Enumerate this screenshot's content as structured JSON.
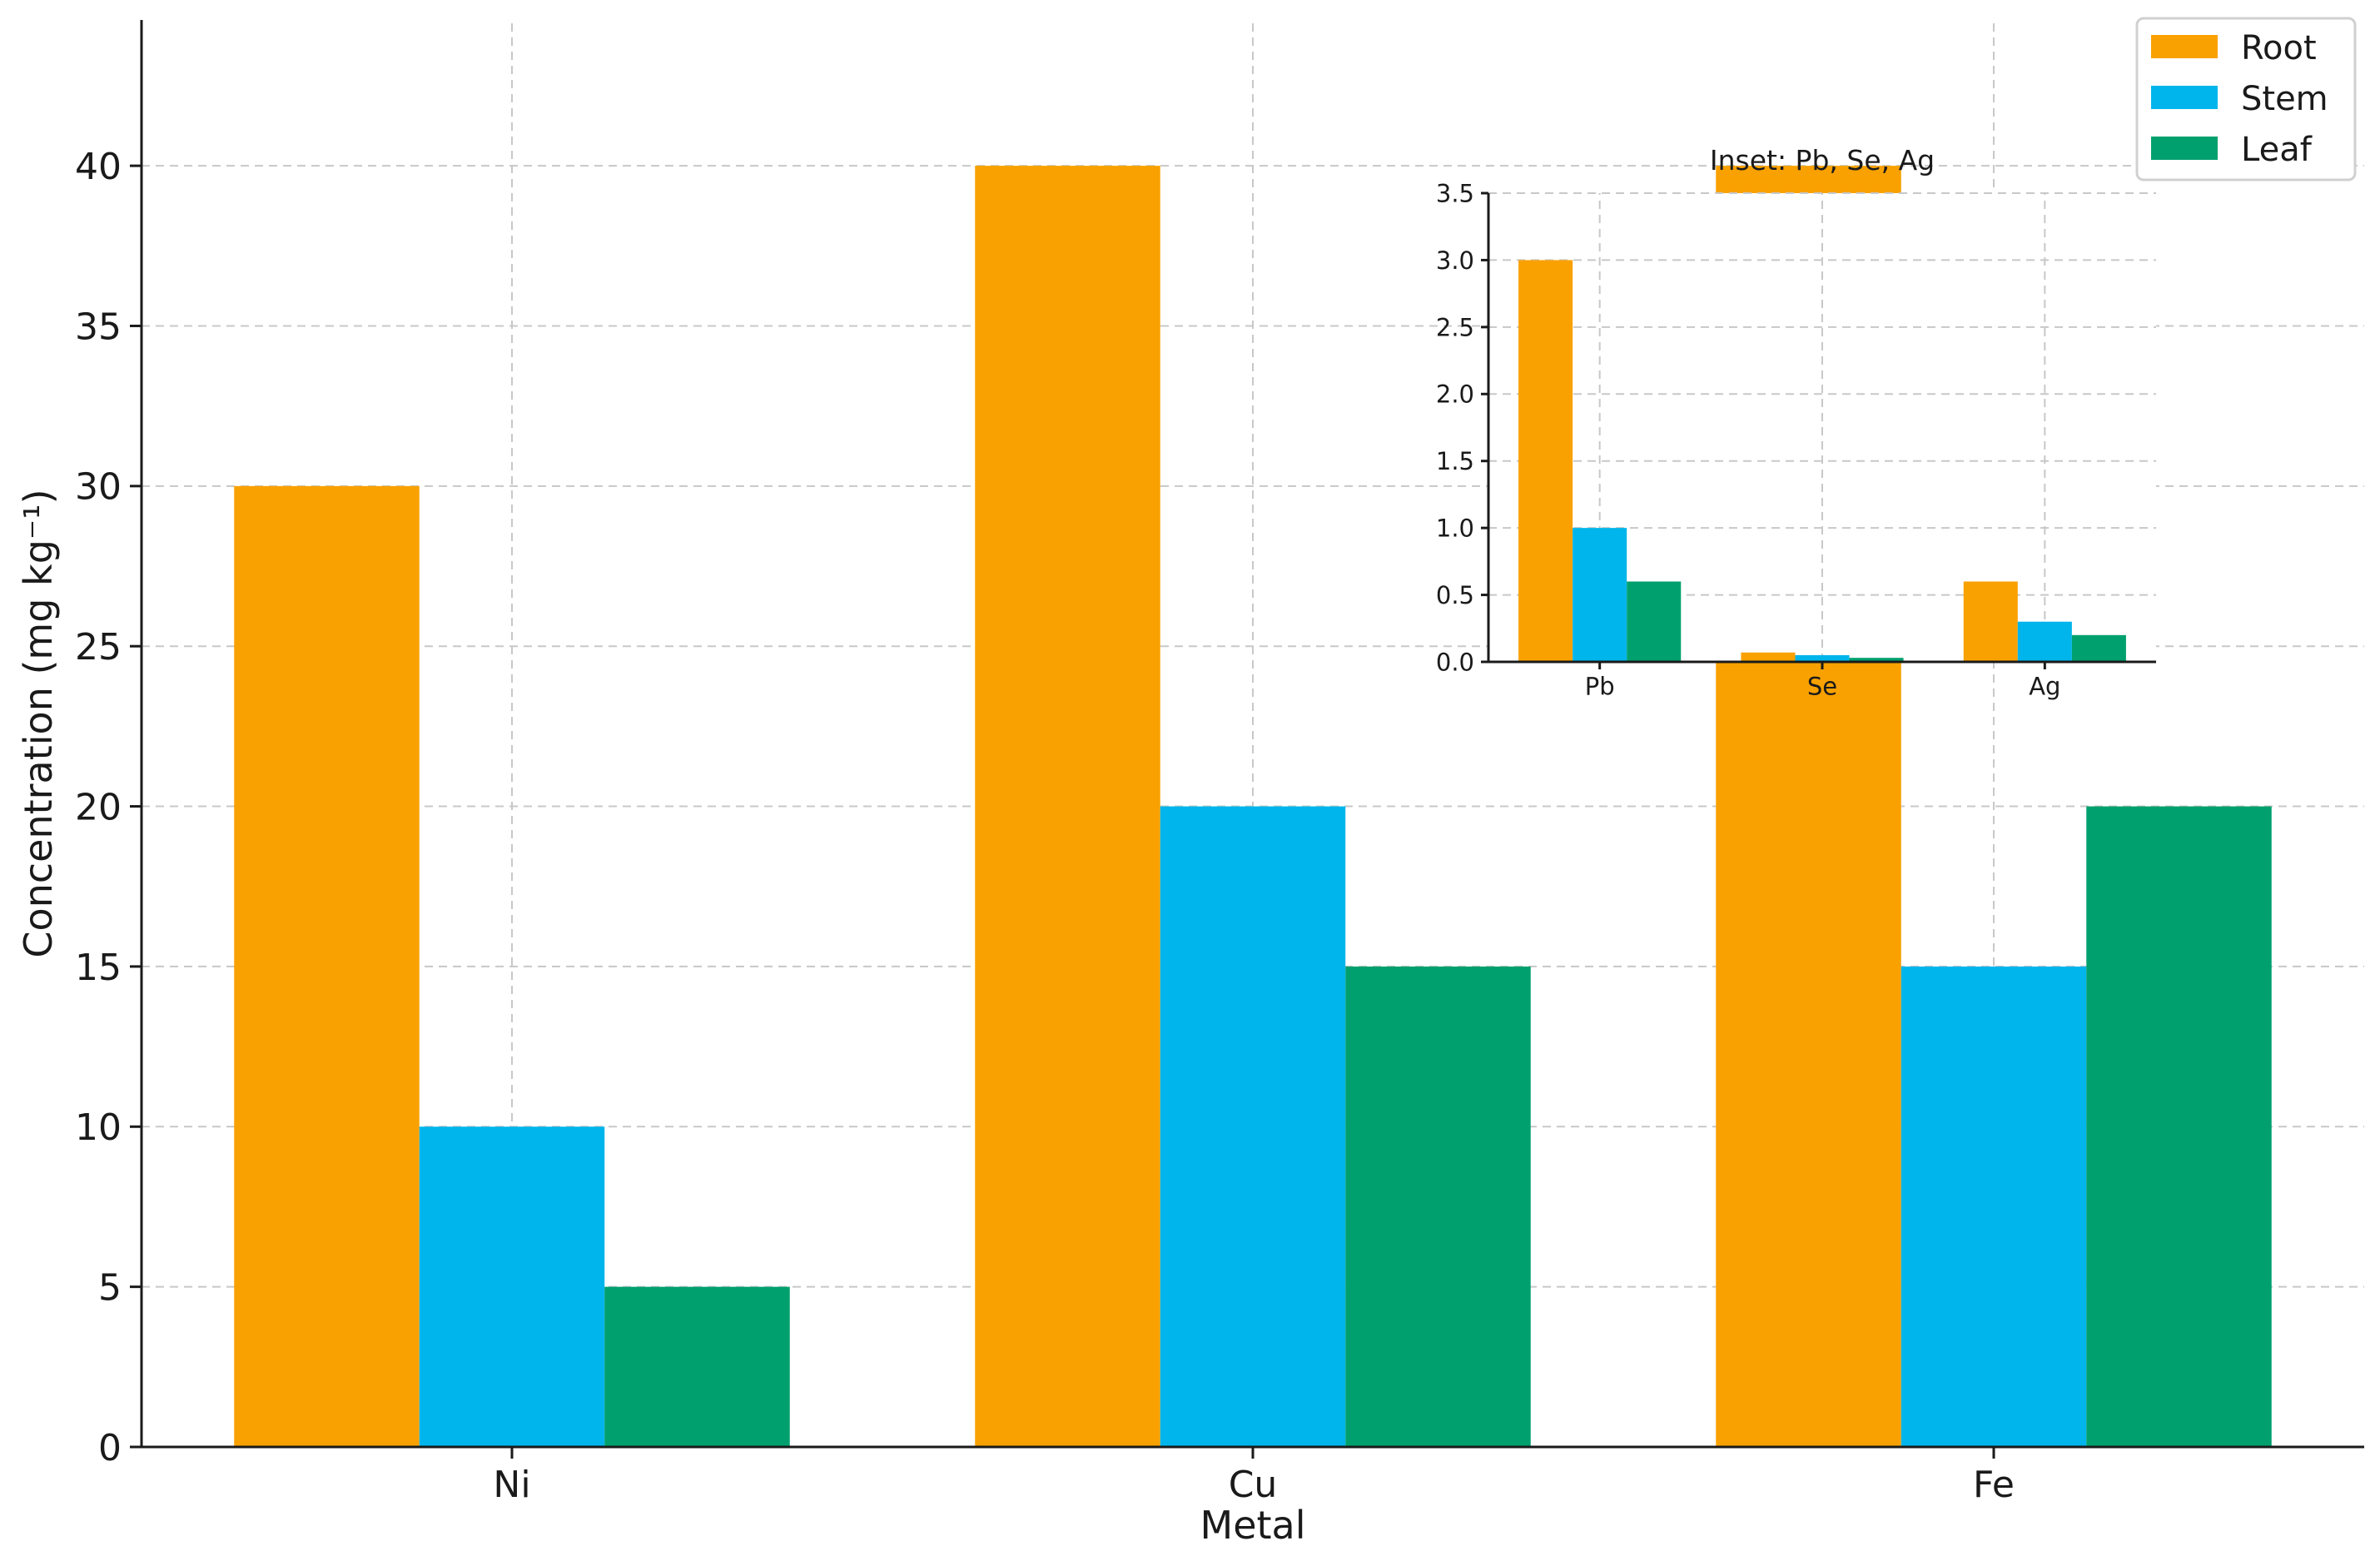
{
  "colors": {
    "Root": "#F9A100",
    "Stem": "#00B5EB",
    "Leaf": "#00A06E"
  },
  "chart_data": [
    {
      "type": "bar",
      "title": "",
      "xlabel": "Metal",
      "ylabel": "Concentration (mg kg⁻¹)",
      "categories": [
        "Ni",
        "Cu",
        "Fe"
      ],
      "series": [
        {
          "name": "Root",
          "values": [
            30,
            40,
            40
          ]
        },
        {
          "name": "Stem",
          "values": [
            10,
            20,
            15
          ]
        },
        {
          "name": "Leaf",
          "values": [
            5,
            15,
            20
          ]
        }
      ],
      "ylim": [
        0,
        44.5
      ],
      "yticks": [
        0,
        5,
        10,
        15,
        20,
        25,
        30,
        35,
        40
      ],
      "ytick_labels": [
        "0",
        "5",
        "10",
        "15",
        "20",
        "25",
        "30",
        "35",
        "40"
      ],
      "grid": true,
      "legend": {
        "position": "top-right",
        "entries": [
          "Root",
          "Stem",
          "Leaf"
        ]
      }
    },
    {
      "type": "bar",
      "title": "Inset: Pb, Se, Ag",
      "xlabel": "",
      "ylabel": "",
      "categories": [
        "Pb",
        "Se",
        "Ag"
      ],
      "series": [
        {
          "name": "Root",
          "values": [
            3.0,
            0.07,
            0.6
          ]
        },
        {
          "name": "Stem",
          "values": [
            1.0,
            0.05,
            0.3
          ]
        },
        {
          "name": "Leaf",
          "values": [
            0.6,
            0.03,
            0.2
          ]
        }
      ],
      "ylim": [
        0,
        3.5
      ],
      "yticks": [
        0,
        0.5,
        1.0,
        1.5,
        2.0,
        2.5,
        3.0,
        3.5
      ],
      "ytick_labels": [
        "0.0",
        "0.5",
        "1.0",
        "1.5",
        "2.0",
        "2.5",
        "3.0",
        "3.5"
      ],
      "grid": true
    }
  ]
}
